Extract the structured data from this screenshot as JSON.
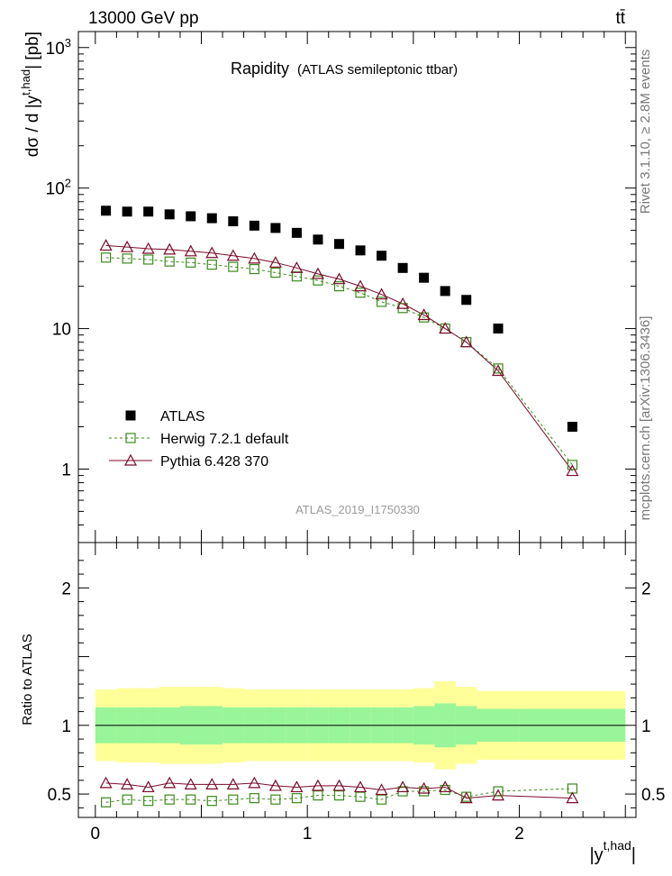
{
  "header": {
    "energy_label": "13000 GeV pp",
    "process_label": "tt̄"
  },
  "side_labels": {
    "rivet": "Rivet 3.1.10, ≥ 2.8M events",
    "mcplots": "mcplots.cern.ch [arXiv:1306.3436]"
  },
  "chart_data": [
    {
      "type": "scatter",
      "panel": "main",
      "title": "Rapidity",
      "subtitle": "(ATLAS semileptonic ttbar)",
      "analysis_id": "ATLAS_2019_I1750330",
      "ylabel": "dσ / d |y^t,had| [pb]",
      "yscale": "log",
      "ylim": [
        0.3,
        1300
      ],
      "xlim": [
        -0.08,
        2.55
      ],
      "ytick_labels": [
        "1",
        "10",
        "10^2",
        "10^3"
      ],
      "legend": {
        "placement": "lower-left",
        "entries": [
          "ATLAS",
          "Herwig 7.2.1 default",
          "Pythia 6.428 370"
        ]
      },
      "x": [
        0.05,
        0.15,
        0.25,
        0.35,
        0.45,
        0.55,
        0.65,
        0.75,
        0.85,
        0.95,
        1.05,
        1.15,
        1.25,
        1.35,
        1.45,
        1.55,
        1.65,
        1.75,
        1.9,
        2.25
      ],
      "series": [
        {
          "name": "ATLAS",
          "color": "#000000",
          "marker": "square-filled",
          "values": [
            69,
            68,
            68,
            65,
            63,
            61,
            58,
            54,
            52,
            48,
            43,
            40,
            36,
            33,
            27,
            23,
            18.5,
            16,
            10,
            2.0
          ]
        },
        {
          "name": "Herwig 7.2.1 default",
          "color": "#3a8a1a",
          "marker": "square-open",
          "line": "dashed",
          "values": [
            32,
            31.5,
            31,
            30,
            29.5,
            28.5,
            27.5,
            26.5,
            25,
            23.5,
            22,
            20,
            18,
            15.5,
            14,
            12,
            10,
            8,
            5.2,
            1.07
          ]
        },
        {
          "name": "Pythia 6.428 370",
          "color": "#7a0a2a",
          "marker": "triangle-open",
          "line": "solid",
          "values": [
            39,
            38,
            37,
            36.5,
            35.5,
            34.5,
            33,
            31.5,
            29.5,
            27,
            24.5,
            22.5,
            20,
            17.5,
            15,
            12.5,
            10,
            8,
            5,
            0.97
          ]
        }
      ]
    },
    {
      "type": "line",
      "panel": "ratio",
      "ylabel": "Ratio to ATLAS",
      "xlabel": "|y^t,had|",
      "ylim": [
        0.33,
        2.33
      ],
      "xlim": [
        -0.08,
        2.55
      ],
      "ytick_labels": [
        "0.5",
        "1",
        "2"
      ],
      "xtick_labels": [
        "0",
        "1",
        "2"
      ],
      "bin_edges": [
        0.0,
        0.1,
        0.2,
        0.3,
        0.4,
        0.5,
        0.6,
        0.7,
        0.8,
        0.9,
        1.0,
        1.1,
        1.2,
        1.3,
        1.4,
        1.5,
        1.6,
        1.7,
        1.8,
        2.0,
        2.5
      ],
      "band_inner": [
        0.13,
        0.13,
        0.13,
        0.13,
        0.14,
        0.14,
        0.13,
        0.13,
        0.13,
        0.13,
        0.13,
        0.13,
        0.13,
        0.13,
        0.13,
        0.14,
        0.16,
        0.14,
        0.12,
        0.12
      ],
      "band_outer": [
        0.26,
        0.27,
        0.27,
        0.28,
        0.28,
        0.28,
        0.27,
        0.26,
        0.26,
        0.26,
        0.26,
        0.26,
        0.26,
        0.26,
        0.26,
        0.27,
        0.32,
        0.28,
        0.25,
        0.25
      ],
      "x": [
        0.05,
        0.15,
        0.25,
        0.35,
        0.45,
        0.55,
        0.65,
        0.75,
        0.85,
        0.95,
        1.05,
        1.15,
        1.25,
        1.35,
        1.45,
        1.55,
        1.65,
        1.75,
        1.9,
        2.25
      ],
      "series": [
        {
          "name": "Herwig 7.2.1 default",
          "color": "#3a8a1a",
          "values": [
            0.44,
            0.46,
            0.45,
            0.46,
            0.46,
            0.45,
            0.46,
            0.47,
            0.46,
            0.47,
            0.49,
            0.49,
            0.48,
            0.46,
            0.52,
            0.52,
            0.53,
            0.48,
            0.52,
            0.54
          ]
        },
        {
          "name": "Pythia 6.428 370",
          "color": "#7a0a2a",
          "values": [
            0.58,
            0.57,
            0.55,
            0.58,
            0.57,
            0.57,
            0.57,
            0.58,
            0.56,
            0.55,
            0.56,
            0.56,
            0.55,
            0.53,
            0.55,
            0.54,
            0.55,
            0.47,
            0.49,
            0.47
          ]
        }
      ]
    }
  ]
}
